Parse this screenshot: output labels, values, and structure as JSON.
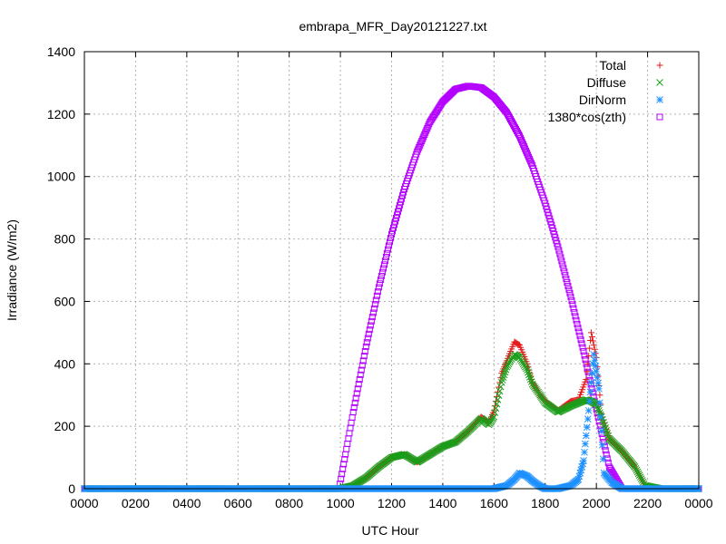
{
  "chart_data": {
    "type": "scatter",
    "title": "embrapa_MFR_Day20121227.txt",
    "xlabel": "UTC Hour",
    "ylabel": "Irradiance (W/m2)",
    "xlim": [
      0,
      24
    ],
    "ylim": [
      0,
      1400
    ],
    "x_ticks": [
      "0000",
      "0200",
      "0400",
      "0600",
      "0800",
      "1000",
      "1200",
      "1400",
      "1600",
      "1800",
      "2000",
      "2200",
      "0000"
    ],
    "y_ticks": [
      "0",
      "200",
      "400",
      "600",
      "800",
      "1000",
      "1200",
      "1400"
    ],
    "grid": true,
    "legend_position": "top-right",
    "series": [
      {
        "name": "Total",
        "marker": "plus",
        "color": "#e41a1c",
        "x": [
          0,
          9.5,
          10.0,
          10.5,
          11.0,
          11.5,
          12.0,
          12.5,
          13.0,
          13.5,
          14.0,
          14.5,
          15.0,
          15.5,
          15.8,
          16.0,
          16.3,
          16.5,
          16.8,
          17.0,
          17.3,
          17.5,
          17.8,
          18.0,
          18.5,
          19.0,
          19.3,
          19.6,
          19.8,
          20.0,
          20.2,
          20.5,
          21.0,
          21.5,
          21.9,
          22.5,
          24
        ],
        "y": [
          0,
          0,
          0,
          10,
          35,
          70,
          100,
          110,
          85,
          110,
          135,
          150,
          185,
          230,
          210,
          250,
          370,
          410,
          470,
          460,
          400,
          340,
          300,
          280,
          250,
          280,
          285,
          350,
          500,
          420,
          240,
          160,
          120,
          70,
          10,
          0,
          0
        ]
      },
      {
        "name": "Diffuse",
        "marker": "cross",
        "color": "#1a9e1a",
        "x": [
          0,
          9.5,
          10.0,
          10.5,
          11.0,
          11.5,
          12.0,
          12.5,
          13.0,
          13.5,
          14.0,
          14.5,
          15.0,
          15.5,
          15.8,
          16.0,
          16.3,
          16.5,
          16.8,
          17.0,
          17.3,
          17.5,
          17.8,
          18.0,
          18.5,
          19.0,
          19.3,
          19.6,
          19.8,
          20.0,
          20.2,
          20.5,
          21.0,
          21.5,
          21.9,
          22.5,
          24
        ],
        "y": [
          0,
          0,
          0,
          10,
          35,
          70,
          100,
          110,
          85,
          110,
          135,
          150,
          185,
          225,
          205,
          230,
          340,
          390,
          430,
          420,
          380,
          335,
          300,
          275,
          245,
          265,
          275,
          285,
          280,
          270,
          230,
          160,
          120,
          70,
          10,
          0,
          0
        ]
      },
      {
        "name": "DirNorm",
        "marker": "star",
        "color": "#1e90ff",
        "x": [
          0,
          15.5,
          16.0,
          16.5,
          16.8,
          17.0,
          17.3,
          17.5,
          17.8,
          18.0,
          18.5,
          19.0,
          19.3,
          19.5,
          19.7,
          19.9,
          20.1,
          20.3,
          20.6,
          21.0,
          22.0,
          24
        ],
        "y": [
          0,
          0,
          0,
          10,
          30,
          50,
          40,
          25,
          8,
          0,
          0,
          10,
          30,
          90,
          250,
          430,
          320,
          50,
          20,
          0,
          0,
          0
        ]
      },
      {
        "name": "1380*cos(zth)",
        "marker": "square",
        "color": "#b400ff",
        "x": [
          0,
          9.95,
          10.2,
          10.5,
          11.0,
          11.5,
          12.0,
          12.5,
          13.0,
          13.5,
          14.0,
          14.5,
          15.0,
          15.5,
          16.0,
          16.5,
          17.0,
          17.5,
          18.0,
          18.5,
          19.0,
          19.5,
          20.0,
          20.5,
          21.0,
          21.5,
          22.0,
          22.25,
          24
        ],
        "y": [
          0,
          0,
          110,
          245,
          455,
          645,
          815,
          960,
          1080,
          1175,
          1240,
          1280,
          1290,
          1285,
          1255,
          1205,
          1130,
          1035,
          915,
          775,
          615,
          440,
          255,
          70,
          0,
          0,
          0,
          0,
          0
        ]
      }
    ]
  }
}
